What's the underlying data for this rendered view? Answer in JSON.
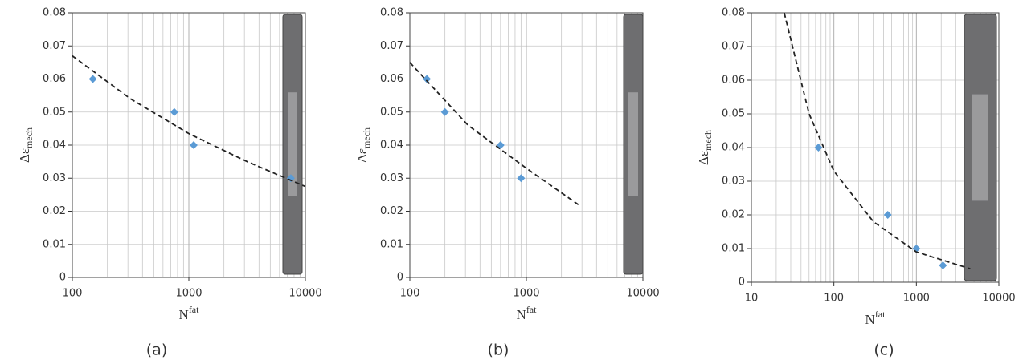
{
  "chart_data": [
    {
      "type": "scatter",
      "x_scale": "log",
      "grid": true,
      "xlim": [
        100,
        10000
      ],
      "ylim": [
        0,
        0.08
      ],
      "xticks": [
        100,
        1000,
        10000
      ],
      "yticks": [
        0,
        0.01,
        0.02,
        0.03,
        0.04,
        0.05,
        0.06,
        0.07,
        0.08
      ],
      "x_label": "N",
      "x_label_sup": "fat",
      "y_label": "Δε",
      "y_label_sub": "mech",
      "caption": "(a)",
      "series": [
        {
          "type": "scatter",
          "marker": "diamond",
          "color": "#5b9bd5",
          "x": [
            150,
            750,
            1100,
            7500
          ],
          "values": [
            0.06,
            0.05,
            0.04,
            0.03
          ]
        },
        {
          "type": "line",
          "style": "dashed",
          "color": "#222222",
          "x": [
            100,
            316,
            1000,
            3162,
            10000
          ],
          "values": [
            0.067,
            0.054,
            0.0435,
            0.035,
            0.0275
          ]
        }
      ]
    },
    {
      "type": "scatter",
      "x_scale": "log",
      "grid": true,
      "xlim": [
        100,
        10000
      ],
      "ylim": [
        0,
        0.08
      ],
      "xticks": [
        100,
        1000,
        10000
      ],
      "yticks": [
        0,
        0.01,
        0.02,
        0.03,
        0.04,
        0.05,
        0.06,
        0.07,
        0.08
      ],
      "x_label": "N",
      "x_label_sup": "fat",
      "y_label": "Δε",
      "y_label_sub": "mech",
      "caption": "(b)",
      "series": [
        {
          "type": "scatter",
          "marker": "diamond",
          "color": "#5b9bd5",
          "x": [
            140,
            200,
            600,
            900
          ],
          "values": [
            0.06,
            0.05,
            0.04,
            0.03
          ]
        },
        {
          "type": "line",
          "style": "dashed",
          "color": "#222222",
          "x": [
            100,
            316,
            1000,
            2800
          ],
          "values": [
            0.065,
            0.046,
            0.033,
            0.022
          ]
        }
      ]
    },
    {
      "type": "scatter",
      "x_scale": "log",
      "grid": true,
      "xlim": [
        10,
        10000
      ],
      "ylim": [
        0,
        0.08
      ],
      "xticks": [
        10,
        100,
        1000,
        10000
      ],
      "yticks": [
        0,
        0.01,
        0.02,
        0.03,
        0.04,
        0.05,
        0.06,
        0.07,
        0.08
      ],
      "x_label": "N",
      "x_label_sup": "fat",
      "y_label": "Δε",
      "y_label_sub": "mech",
      "caption": "(c)",
      "series": [
        {
          "type": "scatter",
          "marker": "diamond",
          "color": "#5b9bd5",
          "x": [
            65,
            450,
            1000,
            2100
          ],
          "values": [
            0.04,
            0.02,
            0.01,
            0.005
          ]
        },
        {
          "type": "line",
          "style": "dashed",
          "color": "#222222",
          "x": [
            25,
            50,
            100,
            300,
            1000,
            4500
          ],
          "values": [
            0.08,
            0.05,
            0.033,
            0.018,
            0.009,
            0.004
          ]
        }
      ]
    }
  ]
}
